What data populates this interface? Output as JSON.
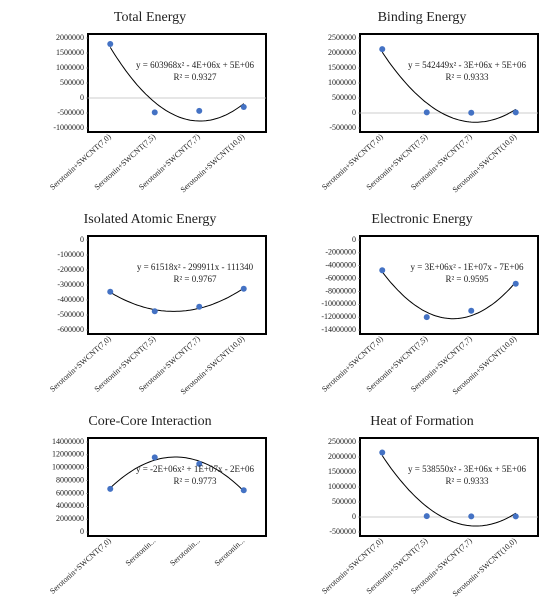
{
  "chart_data": [
    {
      "type": "scatter",
      "title": "Total Energy",
      "categories": [
        "Serotonin+SWCNT(7,0)",
        "Serotonin+SWCNT(7,5)",
        "Serotonin+SWCNT(7,7)",
        "Serotonin+SWCNT(10,0)"
      ],
      "values": [
        1800000,
        -480000,
        -430000,
        -300000
      ],
      "color": "#4472c4",
      "ylim": [
        -1000000,
        2000000
      ],
      "yticks": [
        -1000000,
        -500000,
        0,
        500000,
        1000000,
        1500000,
        2000000
      ],
      "equation": "y = 603968x² - 4E+06x + 5E+06",
      "r_squared": "R² = 0.9327"
    },
    {
      "type": "scatter",
      "title": "Binding Energy",
      "categories": [
        "Serotonin+SWCNT(7,0)",
        "Serotonin+SWCNT(7,5)",
        "Serotonin+SWCNT(7,7)",
        "Serotonin+SWCNT(10,0)"
      ],
      "values": [
        2130000,
        20000,
        10000,
        20000
      ],
      "color": "#4472c4",
      "ylim": [
        -500000,
        2500000
      ],
      "yticks": [
        -500000,
        0,
        500000,
        1000000,
        1500000,
        2000000,
        2500000
      ],
      "equation": "y = 542449x² - 3E+06x + 5E+06",
      "r_squared": "R² = 0.9333"
    },
    {
      "type": "scatter",
      "title": "Isolated Atomic Energy",
      "categories": [
        "Serotonin+SWCNT(7,0)",
        "Serotonin+SWCNT(7,5)",
        "Serotonin+SWCNT(7,7)",
        "Serotonin+SWCNT(10,0)"
      ],
      "values": [
        -345000,
        -475000,
        -445000,
        -325000
      ],
      "color": "#4472c4",
      "ylim": [
        -600000,
        0
      ],
      "yticks": [
        -600000,
        -500000,
        -400000,
        -300000,
        -200000,
        -100000,
        0
      ],
      "equation": "y = 61518x² - 299911x - 111340",
      "r_squared": "R² = 0.9767"
    },
    {
      "type": "scatter",
      "title": "Electronic Energy",
      "categories": [
        "Serotonin+SWCNT(7,0)",
        "Serotonin+SWCNT(7,5)",
        "Serotonin+SWCNT(7,7)",
        "Serotonin+SWCNT(10,0)"
      ],
      "values": [
        -4700000,
        -12000000,
        -11000000,
        -6800000
      ],
      "color": "#4472c4",
      "ylim": [
        -14000000,
        0
      ],
      "yticks": [
        -14000000,
        -12000000,
        -10000000,
        -8000000,
        -6000000,
        -4000000,
        -2000000,
        0
      ],
      "equation": "y = 3E+06x² - 1E+07x - 7E+06",
      "r_squared": "R² = 0.9595"
    },
    {
      "type": "scatter",
      "title": "Core-Core Interaction",
      "categories": [
        "Serotonin+SWCNT(7,0)",
        "Serotonin...",
        "Serotonin...",
        "Serotonin..."
      ],
      "values": [
        6700000,
        11600000,
        10600000,
        6500000
      ],
      "color": "#4472c4",
      "ylim": [
        0,
        14000000
      ],
      "yticks": [
        0,
        2000000,
        4000000,
        6000000,
        8000000,
        10000000,
        12000000,
        14000000
      ],
      "equation": "y = -2E+06x² + 1E+07x - 2E+06",
      "r_squared": "R² = 0.9773"
    },
    {
      "type": "scatter",
      "title": "Heat of Formation",
      "categories": [
        "Serotonin+SWCNT(7,0)",
        "Serotonin+SWCNT(7,5)",
        "Serotonin+SWCNT(7,7)",
        "Serotonin+SWCNT(10,0)"
      ],
      "values": [
        2150000,
        30000,
        20000,
        20000
      ],
      "color": "#4472c4",
      "ylim": [
        -500000,
        2500000
      ],
      "yticks": [
        -500000,
        0,
        500000,
        1000000,
        1500000,
        2000000,
        2500000
      ],
      "equation": "y = 538550x² - 3E+06x + 5E+06",
      "r_squared": "R² = 0.9333"
    }
  ]
}
